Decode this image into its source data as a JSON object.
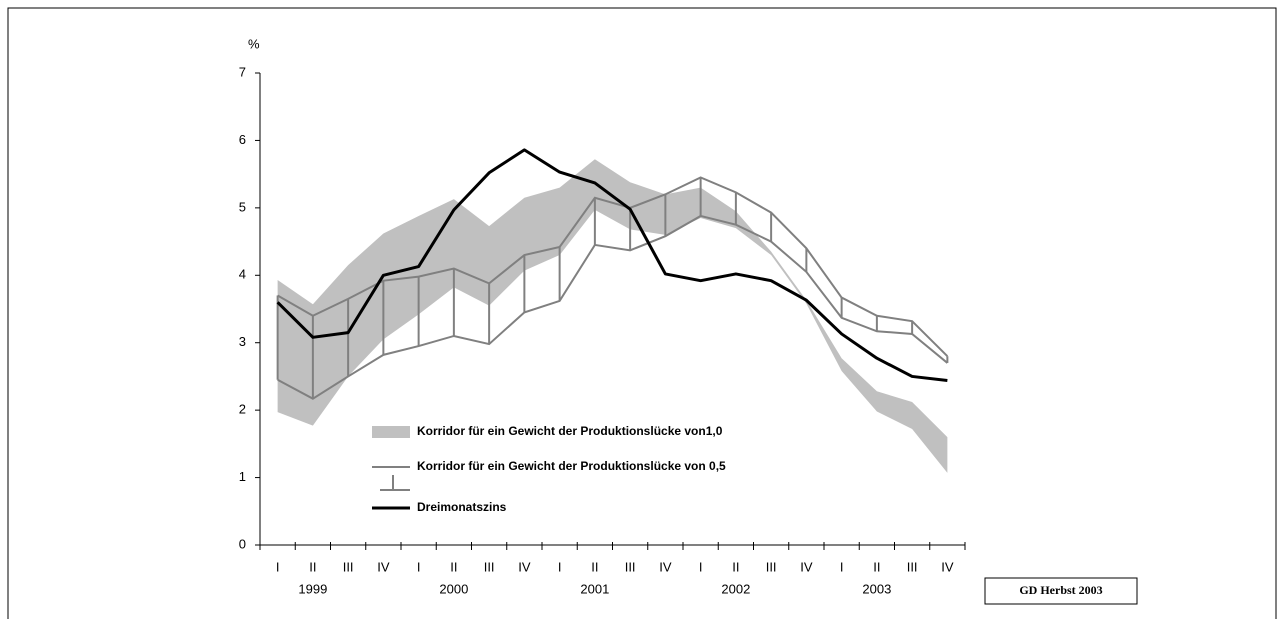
{
  "chart_data": {
    "type": "line",
    "y_unit": "%",
    "categories": [
      "I",
      "II",
      "III",
      "IV",
      "I",
      "II",
      "III",
      "IV",
      "I",
      "II",
      "III",
      "IV",
      "I",
      "II",
      "III",
      "IV",
      "I",
      "II",
      "III",
      "IV"
    ],
    "years": [
      "1999",
      "2000",
      "2001",
      "2002",
      "2003"
    ],
    "ylim": [
      0,
      7
    ],
    "yticks": [
      0,
      1,
      2,
      3,
      4,
      5,
      6,
      7
    ],
    "series": [
      {
        "name": "Korridor für ein Gewicht der Produktionslücke von1,0",
        "kind": "band",
        "color": "#c0c0c0",
        "upper": [
          3.93,
          3.57,
          4.15,
          4.62,
          4.88,
          5.13,
          4.73,
          5.15,
          5.3,
          5.72,
          5.38,
          5.2,
          5.3,
          4.95,
          4.35,
          3.63,
          2.77,
          2.28,
          2.12,
          1.6
        ],
        "lower": [
          1.97,
          1.77,
          2.5,
          3.05,
          3.42,
          3.82,
          3.55,
          4.07,
          4.3,
          4.97,
          4.68,
          4.6,
          4.85,
          4.7,
          4.3,
          3.58,
          2.58,
          1.98,
          1.72,
          1.07
        ]
      },
      {
        "name": "Korridor für ein Gewicht der Produktionslücke von 0,5",
        "kind": "corridor",
        "color": "#808080",
        "upper": [
          3.7,
          3.4,
          3.65,
          3.92,
          3.98,
          4.1,
          3.88,
          4.3,
          4.42,
          5.15,
          5.0,
          5.2,
          5.45,
          5.23,
          4.93,
          4.4,
          3.67,
          3.4,
          3.32,
          2.8
        ],
        "lower": [
          2.45,
          2.17,
          2.5,
          2.82,
          2.95,
          3.1,
          2.98,
          3.45,
          3.62,
          4.45,
          4.37,
          4.58,
          4.88,
          4.75,
          4.5,
          4.05,
          3.37,
          3.17,
          3.13,
          2.7
        ]
      },
      {
        "name": "Dreimonatszins",
        "kind": "line",
        "color": "#000000",
        "values": [
          3.6,
          3.08,
          3.15,
          4.0,
          4.13,
          4.97,
          5.52,
          5.86,
          5.53,
          5.37,
          4.98,
          4.02,
          3.92,
          4.02,
          3.92,
          3.63,
          3.13,
          2.77,
          2.5,
          2.44
        ]
      }
    ],
    "source": "GD Herbst 2003"
  }
}
